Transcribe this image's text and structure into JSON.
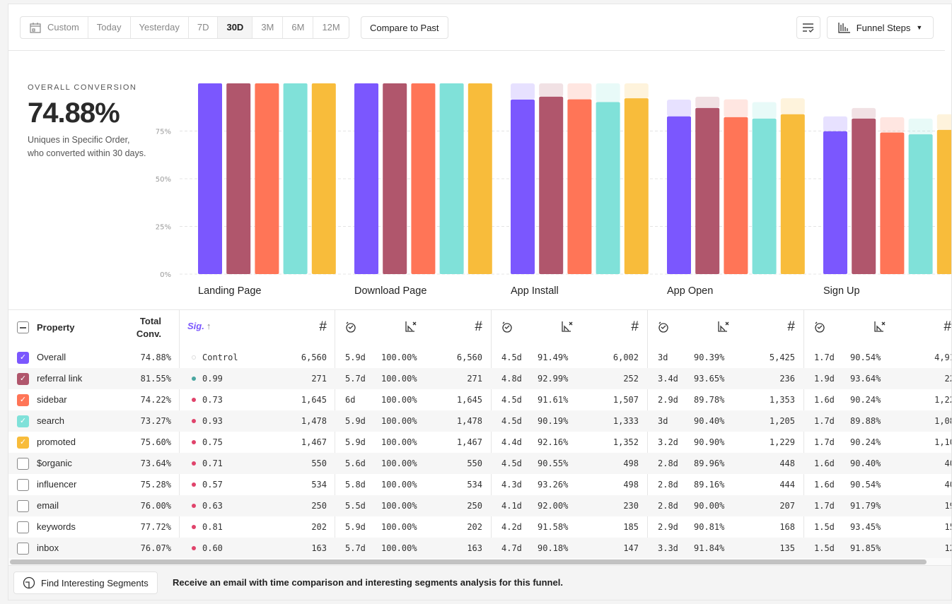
{
  "toolbar": {
    "date_ranges": [
      "Custom",
      "Today",
      "Yesterday",
      "7D",
      "30D",
      "3M",
      "6M",
      "12M"
    ],
    "active_range": "30D",
    "compare_label": "Compare to Past",
    "view_label": "Funnel Steps"
  },
  "summary": {
    "label": "OVERALL CONVERSION",
    "value": "74.88%",
    "description": "Uniques in Specific Order, who converted within 30 days."
  },
  "chart_data": {
    "type": "bar",
    "categories": [
      "Landing Page",
      "Download Page",
      "App Install",
      "App Open",
      "Sign Up"
    ],
    "yticks": [
      "0%",
      "25%",
      "50%",
      "75%"
    ],
    "ylim": [
      0,
      100
    ],
    "grid": true,
    "series": [
      {
        "name": "Overall",
        "color": "#7b57fe",
        "values": [
          100,
          100,
          91.49,
          82.7,
          74.88
        ]
      },
      {
        "name": "referral link",
        "color": "#b0566c",
        "values": [
          100,
          100,
          92.99,
          87.08,
          81.55
        ]
      },
      {
        "name": "sidebar",
        "color": "#ff7557",
        "values": [
          100,
          100,
          91.61,
          82.25,
          74.22
        ]
      },
      {
        "name": "search",
        "color": "#80e1d9",
        "values": [
          100,
          100,
          90.19,
          81.53,
          73.27
        ]
      },
      {
        "name": "promoted",
        "color": "#f8bc3b",
        "values": [
          100,
          100,
          92.16,
          83.78,
          75.6
        ]
      }
    ]
  },
  "table": {
    "headers": {
      "property": "Property",
      "total_conv": "Total Conv.",
      "sig": "Sig.",
      "sig_sort": "↑",
      "count": "#"
    },
    "rows": [
      {
        "name": "Overall",
        "checked": true,
        "color": "#7b57fe",
        "total": "74.88%",
        "sig": "Control",
        "sig_color": "#e8e8e8",
        "count": "6,560",
        "steps": [
          [
            "5.9d",
            "100.00%",
            "6,560"
          ],
          [
            "4.5d",
            "91.49%",
            "6,002"
          ],
          [
            "3d",
            "90.39%",
            "5,425"
          ],
          [
            "1.7d",
            "90.54%",
            "4,91"
          ]
        ]
      },
      {
        "name": "referral link",
        "checked": true,
        "color": "#b0566c",
        "total": "81.55%",
        "sig": "0.99",
        "sig_color": "#4aa6a0",
        "count": "271",
        "steps": [
          [
            "5.7d",
            "100.00%",
            "271"
          ],
          [
            "4.8d",
            "92.99%",
            "252"
          ],
          [
            "3.4d",
            "93.65%",
            "236"
          ],
          [
            "1.9d",
            "93.64%",
            "22"
          ]
        ]
      },
      {
        "name": "sidebar",
        "checked": true,
        "color": "#ff7557",
        "total": "74.22%",
        "sig": "0.73",
        "sig_color": "#e0436b",
        "count": "1,645",
        "steps": [
          [
            "6d",
            "100.00%",
            "1,645"
          ],
          [
            "4.5d",
            "91.61%",
            "1,507"
          ],
          [
            "2.9d",
            "89.78%",
            "1,353"
          ],
          [
            "1.6d",
            "90.24%",
            "1,22"
          ]
        ]
      },
      {
        "name": "search",
        "checked": true,
        "color": "#80e1d9",
        "total": "73.27%",
        "sig": "0.93",
        "sig_color": "#e0436b",
        "count": "1,478",
        "steps": [
          [
            "5.9d",
            "100.00%",
            "1,478"
          ],
          [
            "4.5d",
            "90.19%",
            "1,333"
          ],
          [
            "3d",
            "90.40%",
            "1,205"
          ],
          [
            "1.7d",
            "89.88%",
            "1,08"
          ]
        ]
      },
      {
        "name": "promoted",
        "checked": true,
        "color": "#f8bc3b",
        "total": "75.60%",
        "sig": "0.75",
        "sig_color": "#e0436b",
        "count": "1,467",
        "steps": [
          [
            "5.9d",
            "100.00%",
            "1,467"
          ],
          [
            "4.4d",
            "92.16%",
            "1,352"
          ],
          [
            "3.2d",
            "90.90%",
            "1,229"
          ],
          [
            "1.7d",
            "90.24%",
            "1,10"
          ]
        ]
      },
      {
        "name": "$organic",
        "checked": false,
        "total": "73.64%",
        "sig": "0.71",
        "sig_color": "#e0436b",
        "count": "550",
        "steps": [
          [
            "5.6d",
            "100.00%",
            "550"
          ],
          [
            "4.5d",
            "90.55%",
            "498"
          ],
          [
            "2.8d",
            "89.96%",
            "448"
          ],
          [
            "1.6d",
            "90.40%",
            "40"
          ]
        ]
      },
      {
        "name": "influencer",
        "checked": false,
        "total": "75.28%",
        "sig": "0.57",
        "sig_color": "#e0436b",
        "count": "534",
        "steps": [
          [
            "5.8d",
            "100.00%",
            "534"
          ],
          [
            "4.3d",
            "93.26%",
            "498"
          ],
          [
            "2.8d",
            "89.16%",
            "444"
          ],
          [
            "1.6d",
            "90.54%",
            "40"
          ]
        ]
      },
      {
        "name": "email",
        "checked": false,
        "total": "76.00%",
        "sig": "0.63",
        "sig_color": "#e0436b",
        "count": "250",
        "steps": [
          [
            "5.5d",
            "100.00%",
            "250"
          ],
          [
            "4.1d",
            "92.00%",
            "230"
          ],
          [
            "2.8d",
            "90.00%",
            "207"
          ],
          [
            "1.7d",
            "91.79%",
            "19"
          ]
        ]
      },
      {
        "name": "keywords",
        "checked": false,
        "total": "77.72%",
        "sig": "0.81",
        "sig_color": "#e0436b",
        "count": "202",
        "steps": [
          [
            "5.9d",
            "100.00%",
            "202"
          ],
          [
            "4.2d",
            "91.58%",
            "185"
          ],
          [
            "2.9d",
            "90.81%",
            "168"
          ],
          [
            "1.5d",
            "93.45%",
            "15"
          ]
        ]
      },
      {
        "name": "inbox",
        "checked": false,
        "total": "76.07%",
        "sig": "0.60",
        "sig_color": "#e0436b",
        "count": "163",
        "steps": [
          [
            "5.7d",
            "100.00%",
            "163"
          ],
          [
            "4.7d",
            "90.18%",
            "147"
          ],
          [
            "3.3d",
            "91.84%",
            "135"
          ],
          [
            "1.5d",
            "91.85%",
            "12"
          ]
        ]
      }
    ]
  },
  "footer": {
    "button_label": "Find Interesting Segments",
    "message": "Receive an email with time comparison and interesting segments analysis for this funnel."
  }
}
